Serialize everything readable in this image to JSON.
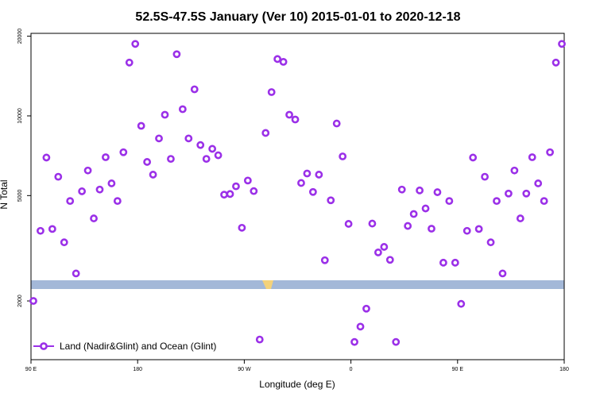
{
  "chart_data": {
    "type": "scatter",
    "title": "52.5S-47.5S January (Ver 10)   2015-01-01 to 2020-12-18",
    "xlabel": "Longitude (deg E)",
    "ylabel": "N Total",
    "x_ticks": [
      {
        "value": 90,
        "label": "90 E"
      },
      {
        "value": 180,
        "label": "180"
      },
      {
        "value": 270,
        "label": "90 W"
      },
      {
        "value": 360,
        "label": "0"
      },
      {
        "value": 450,
        "label": "90 E"
      },
      {
        "value": 540,
        "label": "180"
      }
    ],
    "y_ticks": [
      {
        "value": 2000,
        "label": "2000"
      },
      {
        "value": 5000,
        "label": "5000"
      },
      {
        "value": 10000,
        "label": "10000"
      },
      {
        "value": 20000,
        "label": "20000"
      }
    ],
    "xlim": [
      90,
      540
    ],
    "ylim": [
      1200,
      20500
    ],
    "y_scale": "log",
    "colors": {
      "series": "#9b30e8",
      "band": "#a3b8d8",
      "land": "#f4d27a",
      "axis": "#000000"
    },
    "legend": {
      "label": "Land (Nadir&Glint) and Ocean (Glint)",
      "placement": "bottom-left"
    },
    "series": [
      {
        "name": "Land (Nadir&Glint) and Ocean (Glint)",
        "points": [
          {
            "x": 92,
            "y": 2000
          },
          {
            "x": 98,
            "y": 3680
          },
          {
            "x": 103,
            "y": 6960
          },
          {
            "x": 108,
            "y": 3740
          },
          {
            "x": 113,
            "y": 5890
          },
          {
            "x": 118,
            "y": 3330
          },
          {
            "x": 123,
            "y": 4770
          },
          {
            "x": 128,
            "y": 2540
          },
          {
            "x": 133,
            "y": 5190
          },
          {
            "x": 138,
            "y": 6220
          },
          {
            "x": 143,
            "y": 4100
          },
          {
            "x": 148,
            "y": 5270
          },
          {
            "x": 153,
            "y": 6980
          },
          {
            "x": 158,
            "y": 5560
          },
          {
            "x": 163,
            "y": 4770
          },
          {
            "x": 168,
            "y": 7290
          },
          {
            "x": 173,
            "y": 15900
          },
          {
            "x": 178,
            "y": 18700
          },
          {
            "x": 183,
            "y": 9170
          },
          {
            "x": 188,
            "y": 6700
          },
          {
            "x": 193,
            "y": 6000
          },
          {
            "x": 198,
            "y": 8220
          },
          {
            "x": 203,
            "y": 10100
          },
          {
            "x": 208,
            "y": 6880
          },
          {
            "x": 213,
            "y": 17100
          },
          {
            "x": 218,
            "y": 10600
          },
          {
            "x": 223,
            "y": 8220
          },
          {
            "x": 228,
            "y": 12600
          },
          {
            "x": 233,
            "y": 7760
          },
          {
            "x": 238,
            "y": 6880
          },
          {
            "x": 243,
            "y": 7510
          },
          {
            "x": 248,
            "y": 7100
          },
          {
            "x": 253,
            "y": 5040
          },
          {
            "x": 258,
            "y": 5070
          },
          {
            "x": 263,
            "y": 5420
          },
          {
            "x": 268,
            "y": 3780
          },
          {
            "x": 273,
            "y": 5700
          },
          {
            "x": 278,
            "y": 5200
          },
          {
            "x": 283,
            "y": 1430
          },
          {
            "x": 288,
            "y": 8620
          },
          {
            "x": 293,
            "y": 12300
          },
          {
            "x": 298,
            "y": 16400
          },
          {
            "x": 303,
            "y": 16000
          },
          {
            "x": 308,
            "y": 10100
          },
          {
            "x": 313,
            "y": 9690
          },
          {
            "x": 318,
            "y": 5580
          },
          {
            "x": 323,
            "y": 6060
          },
          {
            "x": 328,
            "y": 5160
          },
          {
            "x": 333,
            "y": 6000
          },
          {
            "x": 338,
            "y": 2850
          },
          {
            "x": 343,
            "y": 4800
          },
          {
            "x": 348,
            "y": 9360
          },
          {
            "x": 353,
            "y": 7030
          },
          {
            "x": 358,
            "y": 3910
          },
          {
            "x": 363,
            "y": 1400
          },
          {
            "x": 368,
            "y": 1600
          },
          {
            "x": 373,
            "y": 1870
          },
          {
            "x": 378,
            "y": 3920
          },
          {
            "x": 383,
            "y": 3050
          },
          {
            "x": 388,
            "y": 3200
          },
          {
            "x": 393,
            "y": 2860
          },
          {
            "x": 398,
            "y": 1400
          },
          {
            "x": 403,
            "y": 5270
          },
          {
            "x": 408,
            "y": 3840
          },
          {
            "x": 413,
            "y": 4260
          },
          {
            "x": 418,
            "y": 5230
          },
          {
            "x": 423,
            "y": 4470
          },
          {
            "x": 428,
            "y": 3750
          },
          {
            "x": 433,
            "y": 5150
          },
          {
            "x": 438,
            "y": 2790
          },
          {
            "x": 443,
            "y": 4770
          },
          {
            "x": 448,
            "y": 2790
          },
          {
            "x": 453,
            "y": 1950
          },
          {
            "x": 458,
            "y": 3680
          },
          {
            "x": 463,
            "y": 6960
          },
          {
            "x": 468,
            "y": 3740
          },
          {
            "x": 473,
            "y": 5890
          },
          {
            "x": 478,
            "y": 3330
          },
          {
            "x": 483,
            "y": 4770
          },
          {
            "x": 488,
            "y": 2540
          },
          {
            "x": 493,
            "y": 5090
          },
          {
            "x": 498,
            "y": 6220
          },
          {
            "x": 503,
            "y": 4100
          },
          {
            "x": 508,
            "y": 5090
          },
          {
            "x": 513,
            "y": 6980
          },
          {
            "x": 518,
            "y": 5560
          },
          {
            "x": 523,
            "y": 4770
          },
          {
            "x": 528,
            "y": 7290
          },
          {
            "x": 533,
            "y": 15900
          },
          {
            "x": 538,
            "y": 18700
          }
        ]
      }
    ]
  }
}
